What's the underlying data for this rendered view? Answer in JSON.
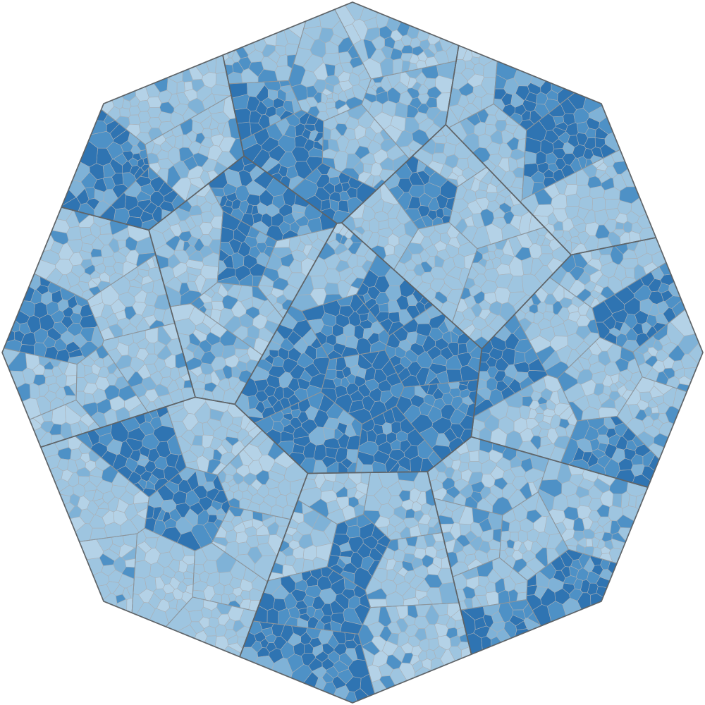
{
  "chart_data": {
    "type": "voronoi-treemap",
    "boundary": "octagon",
    "title": "",
    "legend": "none",
    "colors": {
      "background": "#ffffff",
      "cell_base": "#9ec5e0",
      "cell_light": "#b4d2e7",
      "cell_mid": "#7fb2d7",
      "cell_strong": "#4e91c6",
      "cell_darkest": "#2f74b2",
      "cell_border": "#aab0b6",
      "region_border": "#5f6468",
      "gap_fill": "#c9dcea"
    },
    "regions": [
      {
        "id": "center",
        "intensity": 0.3,
        "dark_spots": 9
      },
      {
        "id": "top",
        "intensity": 0.35,
        "dark_spots": 5
      },
      {
        "id": "top-left",
        "intensity": 0.22,
        "dark_spots": 2
      },
      {
        "id": "top-right",
        "intensity": 0.18,
        "dark_spots": 2
      },
      {
        "id": "right",
        "intensity": 0.24,
        "dark_spots": 3
      },
      {
        "id": "left",
        "intensity": 0.2,
        "dark_spots": 2
      },
      {
        "id": "bottom-left",
        "intensity": 0.12,
        "dark_spots": 2
      },
      {
        "id": "bottom-center",
        "intensity": 0.28,
        "dark_spots": 3
      },
      {
        "id": "bottom-right",
        "intensity": 0.32,
        "dark_spots": 4
      },
      {
        "id": "center-left-small",
        "intensity": 0.35,
        "dark_spots": 3
      },
      {
        "id": "center-top-right",
        "intensity": 0.18,
        "dark_spots": 1
      }
    ]
  }
}
